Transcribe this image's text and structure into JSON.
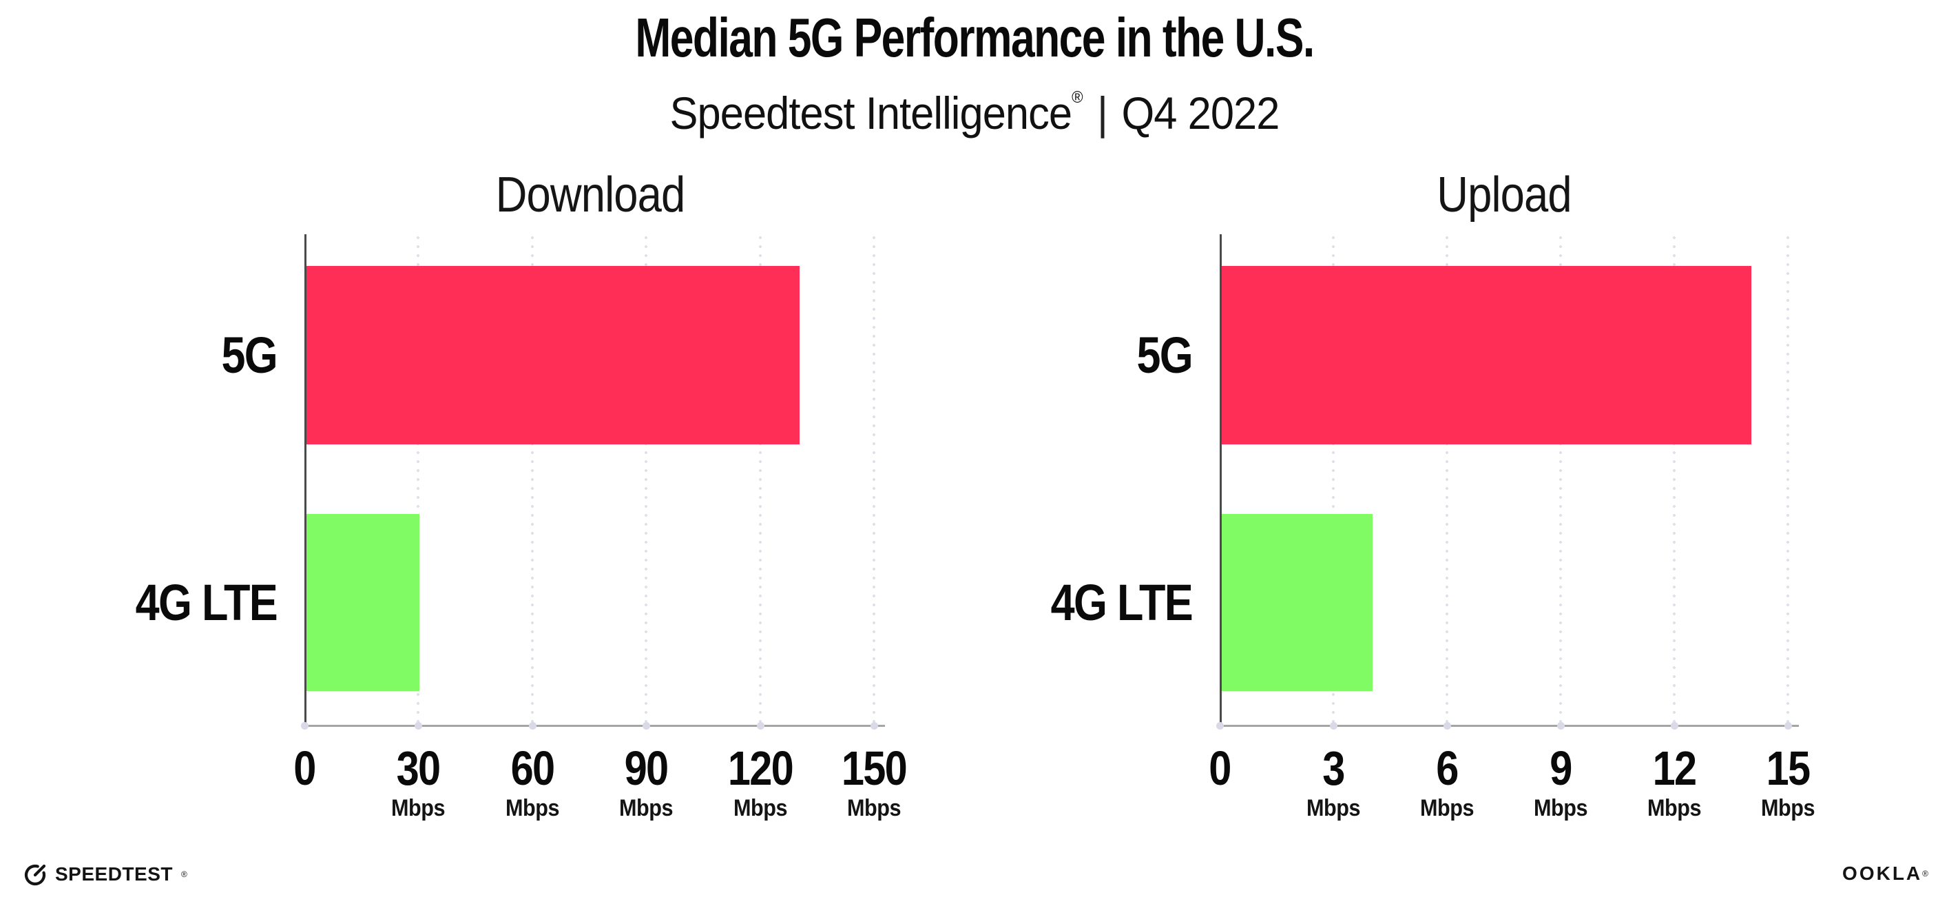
{
  "header": {
    "title": "Median 5G Performance in the U.S.",
    "subtitle": {
      "brand": "Speedtest Intelligence",
      "registered_mark": "®",
      "separator": "|",
      "period": "Q4 2022"
    }
  },
  "chart_data": [
    {
      "type": "bar",
      "orientation": "horizontal",
      "title": "Download",
      "categories": [
        "5G",
        "4G LTE"
      ],
      "values": [
        130,
        30
      ],
      "value_unit": "Mbps",
      "xlim": [
        0,
        150
      ],
      "xtick_labels": [
        "0",
        "30",
        "60",
        "90",
        "120",
        "150"
      ],
      "xtick_units": [
        "",
        "Mbps",
        "Mbps",
        "Mbps",
        "Mbps",
        "Mbps"
      ],
      "bar_colors": [
        "#FF2E56",
        "#80FB63"
      ],
      "grid": "vertical-dotted",
      "legend": "none"
    },
    {
      "type": "bar",
      "orientation": "horizontal",
      "title": "Upload",
      "categories": [
        "5G",
        "4G LTE"
      ],
      "values": [
        14,
        4
      ],
      "value_unit": "Mbps",
      "xlim": [
        0,
        15
      ],
      "xtick_labels": [
        "0",
        "3",
        "6",
        "9",
        "12",
        "15"
      ],
      "xtick_units": [
        "",
        "Mbps",
        "Mbps",
        "Mbps",
        "Mbps",
        "Mbps"
      ],
      "bar_colors": [
        "#FF2E56",
        "#80FB63"
      ],
      "grid": "vertical-dotted",
      "legend": "none"
    }
  ],
  "footer": {
    "speedtest": {
      "label": "SPEEDTEST",
      "registered_mark": "®",
      "icon": "speedtest-gauge-icon"
    },
    "ookla": {
      "label": "OOKLA",
      "registered_mark": "®"
    }
  },
  "colors": {
    "bar_5g": "#FF2E56",
    "bar_4g_lte": "#80FB63",
    "gridline": "#E0E0EC",
    "tick_dot": "#D9D9E7",
    "x_axis": "#A5A5A5",
    "y_axis": "#4A4A4A",
    "text": "#0A0A0A",
    "background": "#FFFFFF"
  }
}
